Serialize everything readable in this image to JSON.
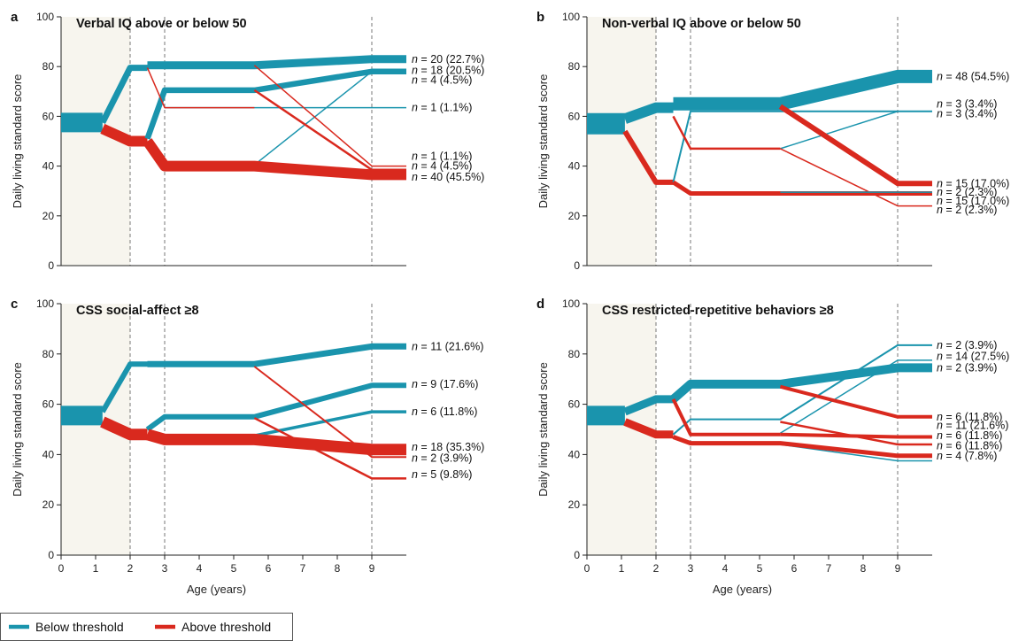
{
  "colors": {
    "below": "#1a94ad",
    "above": "#d9291e",
    "axis": "#222222",
    "vline": "#777777",
    "shade": "#f7f5ee"
  },
  "legend": {
    "items": [
      {
        "label": "Below threshold",
        "color": "#1a94ad"
      },
      {
        "label": "Above threshold",
        "color": "#d9291e"
      }
    ]
  },
  "chart_data": [
    {
      "type": "line",
      "letter": "a",
      "title": "Verbal IQ above or below 50",
      "xlabel": "",
      "ylabel": "Daily living standard score",
      "xlim": [
        0,
        10
      ],
      "ylim": [
        0,
        100
      ],
      "xticks": [],
      "yticks": [
        0,
        20,
        40,
        60,
        80,
        100
      ],
      "vlines": [
        2,
        3,
        9
      ],
      "series": [
        {
          "group": "below",
          "width": 22,
          "x": [
            0,
            1.2
          ],
          "y": [
            57.5,
            57.5
          ]
        },
        {
          "group": "below",
          "width": 7,
          "x": [
            1.2,
            2,
            2.5
          ],
          "y": [
            57.5,
            79.5,
            79.5
          ]
        },
        {
          "group": "above",
          "width": 12,
          "x": [
            1.2,
            2,
            2.5
          ],
          "y": [
            55,
            50,
            50
          ]
        },
        {
          "group": "below",
          "width": 9,
          "x": [
            2.5,
            3,
            5.6,
            9,
            10
          ],
          "y": [
            80.5,
            80.5,
            80.5,
            83,
            83
          ]
        },
        {
          "group": "below",
          "width": 6.5,
          "x": [
            2.5,
            3,
            5.6,
            9,
            10
          ],
          "y": [
            51,
            70.5,
            70.5,
            78,
            78
          ]
        },
        {
          "group": "below",
          "width": 1.5,
          "x": [
            5.6,
            9,
            10
          ],
          "y": [
            40.5,
            78,
            78
          ]
        },
        {
          "group": "below",
          "width": 1.5,
          "x": [
            3,
            9,
            10
          ],
          "y": [
            63.5,
            63.5,
            63.5
          ]
        },
        {
          "group": "above",
          "width": 1.5,
          "x": [
            2.5,
            3,
            5.6
          ],
          "y": [
            79.5,
            63.5,
            63.5
          ]
        },
        {
          "group": "above",
          "width": 1.5,
          "x": [
            5.6,
            9,
            10
          ],
          "y": [
            80.5,
            40,
            40
          ]
        },
        {
          "group": "above",
          "width": 2.5,
          "x": [
            5.6,
            9,
            10
          ],
          "y": [
            70.5,
            38.5,
            38.5
          ]
        },
        {
          "group": "above",
          "width": 12,
          "x": [
            2.5,
            3,
            5.6,
            9,
            10
          ],
          "y": [
            50,
            40,
            40,
            36.5,
            36.5
          ]
        }
      ],
      "labels": [
        {
          "text": "= 20 (22.7%)",
          "y": 83
        },
        {
          "text": "= 18 (20.5%)",
          "y": 78.5
        },
        {
          "text": "= 4 (4.5%)",
          "y": 74.5
        },
        {
          "text": "= 1 (1.1%)",
          "y": 63.5
        },
        {
          "text": "= 1 (1.1%)",
          "y": 44
        },
        {
          "text": "= 4 (4.5%)",
          "y": 40
        },
        {
          "text": "= 40 (45.5%)",
          "y": 35.5
        }
      ]
    },
    {
      "type": "line",
      "letter": "b",
      "title": "Non-verbal IQ above or below 50",
      "xlabel": "",
      "ylabel": "Daily living standard score",
      "xlim": [
        0,
        10
      ],
      "ylim": [
        0,
        100
      ],
      "xticks": [],
      "yticks": [
        0,
        20,
        40,
        60,
        80,
        100
      ],
      "vlines": [
        2,
        3,
        9
      ],
      "series": [
        {
          "group": "below",
          "width": 24,
          "x": [
            0,
            1.1
          ],
          "y": [
            57,
            57
          ]
        },
        {
          "group": "below",
          "width": 12,
          "x": [
            1.1,
            2,
            2.5
          ],
          "y": [
            59,
            63.5,
            63.5
          ]
        },
        {
          "group": "above",
          "width": 6,
          "x": [
            1.1,
            2,
            2.5
          ],
          "y": [
            54,
            33.5,
            33.5
          ]
        },
        {
          "group": "below",
          "width": 15,
          "x": [
            2.5,
            3,
            5.6,
            9,
            10
          ],
          "y": [
            65,
            65,
            65,
            76,
            76
          ]
        },
        {
          "group": "below",
          "width": 2,
          "x": [
            2.5,
            3,
            5.6,
            9,
            10
          ],
          "y": [
            33.5,
            62,
            62,
            62,
            62
          ]
        },
        {
          "group": "below",
          "width": 1.5,
          "x": [
            5.6,
            9,
            10
          ],
          "y": [
            47,
            62,
            62
          ]
        },
        {
          "group": "above",
          "width": 2.5,
          "x": [
            2.5,
            3,
            5.6
          ],
          "y": [
            60,
            47,
            47
          ]
        },
        {
          "group": "above",
          "width": 1.5,
          "x": [
            5.6,
            9,
            10
          ],
          "y": [
            47,
            24,
            24
          ]
        },
        {
          "group": "above",
          "width": 6,
          "x": [
            5.6,
            9,
            10
          ],
          "y": [
            64,
            33,
            33
          ]
        },
        {
          "group": "above",
          "width": 5,
          "x": [
            2.5,
            3,
            5.6,
            9,
            10
          ],
          "y": [
            33.5,
            29,
            29,
            29,
            29
          ]
        },
        {
          "group": "below",
          "width": 1.5,
          "x": [
            5.6,
            9,
            10
          ],
          "y": [
            29.5,
            29.5,
            29.5
          ]
        }
      ],
      "labels": [
        {
          "text": "= 48 (54.5%)",
          "y": 76
        },
        {
          "text": "= 3 (3.4%)",
          "y": 65
        },
        {
          "text": "= 3 (3.4%)",
          "y": 61
        },
        {
          "text": "= 15 (17.0%)",
          "y": 33
        },
        {
          "text": "= 2 (2.3%)",
          "y": 29.5
        },
        {
          "text": "= 15 (17.0%)",
          "y": 26
        },
        {
          "text": "= 2 (2.3%)",
          "y": 22.5
        }
      ]
    },
    {
      "type": "line",
      "letter": "c",
      "title": "CSS social-affect ≥8",
      "xlabel": "Age (years)",
      "ylabel": "Daily living standard score",
      "xlim": [
        0,
        10
      ],
      "ylim": [
        0,
        100
      ],
      "xticks": [
        0,
        1,
        2,
        3,
        4,
        5,
        6,
        7,
        8,
        9
      ],
      "yticks": [
        0,
        20,
        40,
        60,
        80,
        100
      ],
      "vlines": [
        2,
        3,
        9
      ],
      "series": [
        {
          "group": "below",
          "width": 22,
          "x": [
            0,
            1.2
          ],
          "y": [
            55.5,
            55.5
          ]
        },
        {
          "group": "below",
          "width": 6,
          "x": [
            1.2,
            2,
            2.5
          ],
          "y": [
            57,
            76,
            76
          ]
        },
        {
          "group": "above",
          "width": 13,
          "x": [
            1.2,
            2,
            2.5
          ],
          "y": [
            53,
            48,
            48
          ]
        },
        {
          "group": "below",
          "width": 7,
          "x": [
            2.5,
            3,
            5.6,
            9,
            10
          ],
          "y": [
            76,
            76,
            76,
            83,
            83
          ]
        },
        {
          "group": "below",
          "width": 6,
          "x": [
            2.5,
            3,
            5.6,
            9,
            10
          ],
          "y": [
            50,
            55,
            55,
            67.5,
            67.5
          ]
        },
        {
          "group": "below",
          "width": 3.5,
          "x": [
            5.6,
            9,
            10
          ],
          "y": [
            47.5,
            57,
            57
          ]
        },
        {
          "group": "above",
          "width": 2,
          "x": [
            5.6,
            9,
            10
          ],
          "y": [
            75,
            39,
            39
          ]
        },
        {
          "group": "above",
          "width": 2.5,
          "x": [
            5.6,
            9,
            10
          ],
          "y": [
            54.5,
            30.5,
            30.5
          ]
        },
        {
          "group": "above",
          "width": 13,
          "x": [
            2.5,
            3,
            5.6,
            9,
            10
          ],
          "y": [
            48,
            46,
            46,
            42,
            42
          ]
        }
      ],
      "labels": [
        {
          "text": "= 11 (21.6%)",
          "y": 83
        },
        {
          "text": "= 9 (17.6%)",
          "y": 68
        },
        {
          "text": "= 6 (11.8%)",
          "y": 57
        },
        {
          "text": "= 18 (35.3%)",
          "y": 43
        },
        {
          "text": "= 2 (3.9%)",
          "y": 38.5
        },
        {
          "text": "= 5 (9.8%)",
          "y": 32
        }
      ]
    },
    {
      "type": "line",
      "letter": "d",
      "title": "CSS restricted-repetitive behaviors ≥8",
      "xlabel": "Age (years)",
      "ylabel": "Daily living standard score",
      "xlim": [
        0,
        10
      ],
      "ylim": [
        0,
        100
      ],
      "xticks": [
        0,
        1,
        2,
        3,
        4,
        5,
        6,
        7,
        8,
        9
      ],
      "yticks": [
        0,
        20,
        40,
        60,
        80,
        100
      ],
      "vlines": [
        2,
        3,
        9
      ],
      "series": [
        {
          "group": "below",
          "width": 22,
          "x": [
            0,
            1.1
          ],
          "y": [
            55.5,
            55.5
          ]
        },
        {
          "group": "below",
          "width": 9,
          "x": [
            1.1,
            2,
            2.5
          ],
          "y": [
            57,
            62,
            62
          ]
        },
        {
          "group": "above",
          "width": 9,
          "x": [
            1.1,
            2,
            2.5
          ],
          "y": [
            53,
            48,
            48
          ]
        },
        {
          "group": "below",
          "width": 10,
          "x": [
            2.5,
            3,
            5.6,
            9,
            10
          ],
          "y": [
            62,
            68,
            68,
            74.5,
            74.5
          ]
        },
        {
          "group": "below",
          "width": 2,
          "x": [
            2.5,
            3,
            5.6,
            9,
            10
          ],
          "y": [
            48,
            54,
            54,
            83.5,
            83.5
          ]
        },
        {
          "group": "below",
          "width": 1.5,
          "x": [
            5.6,
            9,
            10
          ],
          "y": [
            48.5,
            77.5,
            77.5
          ]
        },
        {
          "group": "below",
          "width": 1.5,
          "x": [
            5.6,
            9,
            10
          ],
          "y": [
            44,
            37.5,
            37.5
          ]
        },
        {
          "group": "above",
          "width": 4,
          "x": [
            2.5,
            3,
            5.6
          ],
          "y": [
            62,
            48,
            48
          ]
        },
        {
          "group": "above",
          "width": 4,
          "x": [
            5.6,
            9,
            10
          ],
          "y": [
            67,
            55,
            55
          ]
        },
        {
          "group": "above",
          "width": 2.5,
          "x": [
            5.6,
            9,
            10
          ],
          "y": [
            53,
            44,
            44
          ]
        },
        {
          "group": "above",
          "width": 4,
          "x": [
            5.6,
            9,
            10
          ],
          "y": [
            48,
            47,
            47
          ]
        },
        {
          "group": "above",
          "width": 5,
          "x": [
            2.5,
            3,
            5.6,
            9,
            10
          ],
          "y": [
            47,
            44.5,
            44.5,
            39.5,
            39.5
          ]
        }
      ],
      "labels": [
        {
          "text": "= 2 (3.9%)",
          "y": 83.5
        },
        {
          "text": "= 14 (27.5%)",
          "y": 79
        },
        {
          "text": "= 2 (3.9%)",
          "y": 74.5
        },
        {
          "text": "= 6 (11.8%)",
          "y": 55
        },
        {
          "text": "= 11 (21.6%)",
          "y": 51.5
        },
        {
          "text": "= 6 (11.8%)",
          "y": 47.5
        },
        {
          "text": "= 6 (11.8%)",
          "y": 43.5
        },
        {
          "text": "= 4 (7.8%)",
          "y": 39.5
        }
      ]
    }
  ]
}
